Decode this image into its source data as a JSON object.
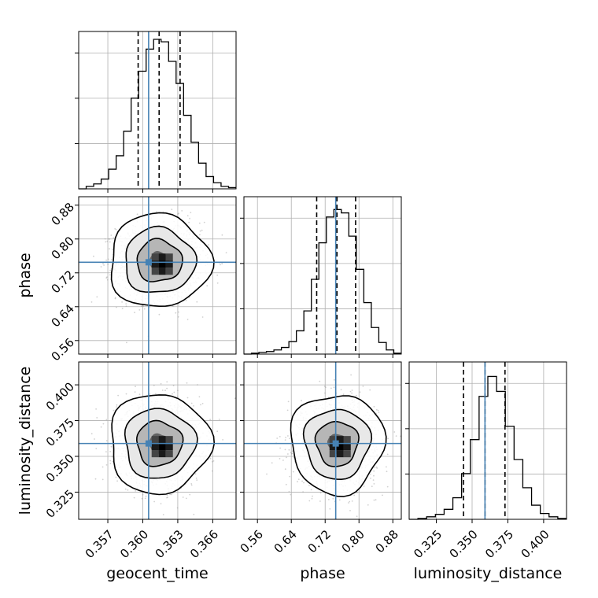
{
  "chart_data": {
    "type": "corner",
    "parameters": [
      "geocent_time",
      "phase",
      "luminosity_distance"
    ],
    "axis_labels": {
      "geocent_time": "geocent_time",
      "phase": "phase",
      "luminosity_distance": "luminosity_distance"
    },
    "ranges": {
      "geocent_time": [
        0.3545,
        0.368
      ],
      "phase": [
        0.528,
        0.9
      ],
      "luminosity_distance": [
        0.306,
        0.416
      ]
    },
    "ticks": {
      "geocent_time": [
        "0.357",
        "0.360",
        "0.363",
        "0.366"
      ],
      "phase": [
        "0.56",
        "0.64",
        "0.72",
        "0.80",
        "0.88"
      ],
      "luminosity_distance": [
        "0.325",
        "0.350",
        "0.375",
        "0.400"
      ]
    },
    "truths": {
      "geocent_time": 0.3605,
      "phase": 0.745,
      "luminosity_distance": 0.359
    },
    "quantiles": {
      "geocent_time": [
        0.3596,
        0.3614,
        0.3632
      ],
      "phase": [
        0.7,
        0.748,
        0.792
      ],
      "luminosity_distance": [
        0.344,
        0.359,
        0.373
      ]
    },
    "histograms": {
      "geocent_time": {
        "counts": [
          0,
          2,
          4,
          8,
          16,
          27,
          47,
          74,
          96,
          114,
          122,
          120,
          104,
          86,
          60,
          38,
          21,
          10,
          5,
          2,
          1
        ],
        "max": 122
      },
      "phase": {
        "counts": [
          0,
          1,
          2,
          3,
          5,
          8,
          15,
          28,
          52,
          90,
          134,
          165,
          174,
          170,
          142,
          102,
          62,
          32,
          14,
          5,
          1
        ],
        "max": 180
      },
      "luminosity_distance": {
        "counts": [
          0,
          1,
          3,
          6,
          12,
          26,
          55,
          96,
          148,
          172,
          154,
          112,
          72,
          38,
          17,
          7,
          3,
          1
        ],
        "max": 180
      }
    },
    "contour_level_scale": [
      1.0,
      0.7,
      0.45,
      0.2
    ],
    "scatter_points_per_panel": 1600,
    "grid": true,
    "truth_color": "#4682b4",
    "line_color": "#000000"
  }
}
